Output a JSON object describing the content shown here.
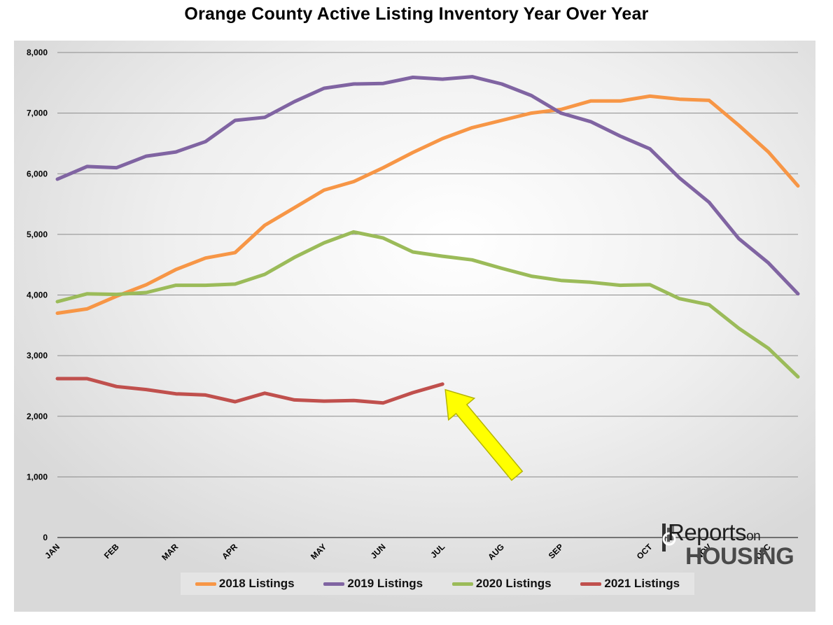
{
  "chart_data": {
    "type": "line",
    "title": "Orange County Active Listing Inventory Year Over Year",
    "xlabel": "",
    "ylabel": "",
    "ylim": [
      0,
      8000
    ],
    "yticks": [
      0,
      1000,
      2000,
      3000,
      4000,
      5000,
      6000,
      7000,
      8000
    ],
    "ytick_labels": [
      "0",
      "1,000",
      "2,000",
      "3,000",
      "4,000",
      "5,000",
      "6,000",
      "7,000",
      "8,000"
    ],
    "x_points": 26,
    "month_labels": [
      {
        "label": "JAN",
        "index": 0
      },
      {
        "label": "FEB",
        "index": 2
      },
      {
        "label": "MAR",
        "index": 4
      },
      {
        "label": "APR",
        "index": 6
      },
      {
        "label": "MAY",
        "index": 9
      },
      {
        "label": "JUN",
        "index": 11
      },
      {
        "label": "JUL",
        "index": 13
      },
      {
        "label": "AUG",
        "index": 15
      },
      {
        "label": "SEP",
        "index": 17
      },
      {
        "label": "OCT",
        "index": 20
      },
      {
        "label": "NOV",
        "index": 22
      },
      {
        "label": "DEC",
        "index": 24
      }
    ],
    "grid": true,
    "legend_position": "bottom",
    "series": [
      {
        "name": "2018 Listings",
        "color": "#f79646",
        "values": [
          3700,
          3770,
          3980,
          4170,
          4420,
          4610,
          4700,
          5150,
          5440,
          5730,
          5870,
          6100,
          6350,
          6580,
          6760,
          6880,
          7000,
          7060,
          7200,
          7200,
          7280,
          7230,
          7210,
          6800,
          6360,
          5800
        ]
      },
      {
        "name": "2019 Listings",
        "color": "#8064a2",
        "values": [
          5910,
          6120,
          6100,
          6290,
          6360,
          6530,
          6880,
          6930,
          7190,
          7410,
          7480,
          7490,
          7590,
          7560,
          7600,
          7480,
          7290,
          7000,
          6860,
          6620,
          6410,
          5930,
          5530,
          4930,
          4530,
          4020
        ]
      },
      {
        "name": "2020 Listings",
        "color": "#9bbb59",
        "values": [
          3890,
          4020,
          4010,
          4040,
          4160,
          4160,
          4180,
          4340,
          4620,
          4860,
          5040,
          4940,
          4710,
          4640,
          4580,
          4440,
          4310,
          4240,
          4210,
          4160,
          4170,
          3940,
          3840,
          3450,
          3120,
          2650
        ]
      },
      {
        "name": "2021 Listings",
        "color": "#c0504d",
        "values": [
          2620,
          2620,
          2490,
          2440,
          2370,
          2350,
          2240,
          2380,
          2270,
          2250,
          2260,
          2220,
          2390,
          2530
        ]
      }
    ],
    "annotation": {
      "type": "arrow",
      "color": "#ffff00",
      "points_to_index": 13,
      "points_to_value": 2530
    }
  },
  "logo": {
    "text_reports": "Reports",
    "text_on": "on",
    "text_housing": "HOUSING"
  }
}
